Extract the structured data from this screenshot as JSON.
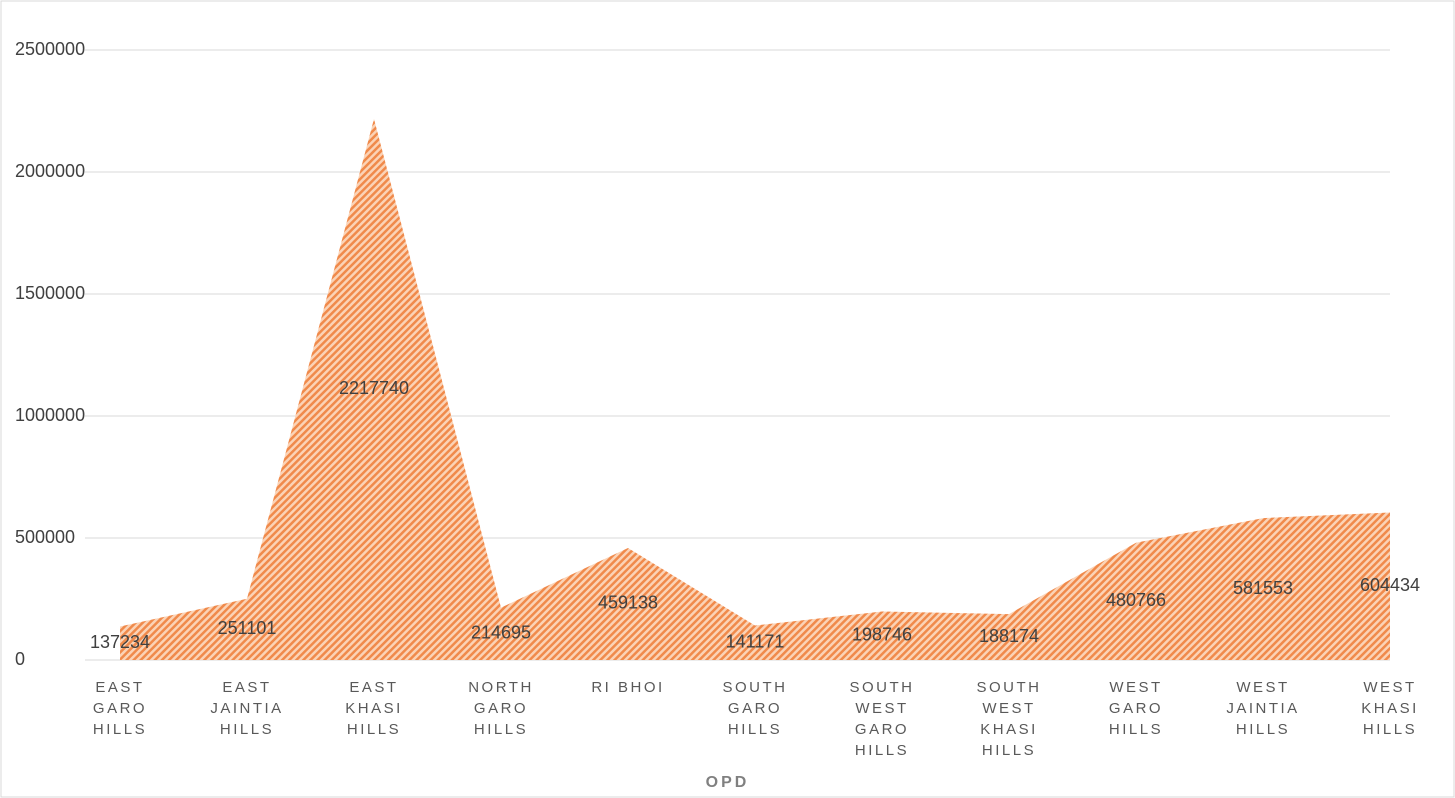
{
  "chart_data": {
    "type": "area",
    "title": "OPD",
    "categories": [
      "EAST GARO HILLS",
      "EAST JAINTIA HILLS",
      "EAST KHASI HILLS",
      "NORTH GARO HILLS",
      "RI BHOI",
      "SOUTH GARO HILLS",
      "SOUTH WEST GARO HILLS",
      "SOUTH WEST KHASI HILLS",
      "WEST GARO HILLS",
      "WEST JAINTIA HILLS",
      "WEST KHASI HILLS"
    ],
    "values": [
      137234,
      251101,
      2217740,
      214695,
      459138,
      141171,
      198746,
      188174,
      480766,
      581553,
      604434
    ],
    "color": "#f08a4b",
    "ylim": [
      0,
      2500000
    ],
    "yticks": [
      0,
      500000,
      1000000,
      1500000,
      2000000,
      2500000
    ],
    "grid": true
  }
}
